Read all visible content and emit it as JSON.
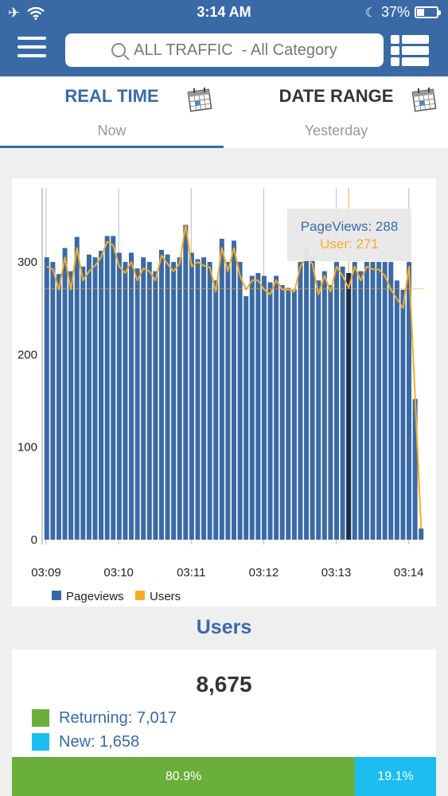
{
  "status_bar": {
    "time": "3:14 AM",
    "battery": "37%",
    "battery_level": 0.37
  },
  "header": {
    "search_text": "ALL TRAFFIC  - All Category",
    "menu_icon": "hamburger-menu-icon",
    "list_icon": "list-view-icon"
  },
  "tabs": [
    {
      "title": "REAL TIME",
      "sub": "Now",
      "active": true,
      "color": "#3a6aa5"
    },
    {
      "title": "DATE RANGE",
      "sub": "Yesterday",
      "active": false,
      "color": "#333333"
    }
  ],
  "chart_data": {
    "type": "bar",
    "x_tick_labels": [
      "03:09",
      "03:10",
      "03:11",
      "03:12",
      "03:13",
      "03:14"
    ],
    "y_tick_labels": [
      "0",
      "100",
      "200",
      "300"
    ],
    "ylim": [
      0,
      380
    ],
    "series": [
      {
        "name": "Pageviews",
        "kind": "bar",
        "color": "#3a6aa5",
        "values": [
          305,
          300,
          287,
          315,
          290,
          327,
          295,
          308,
          305,
          312,
          328,
          328,
          310,
          300,
          310,
          293,
          305,
          300,
          290,
          313,
          308,
          300,
          305,
          340,
          310,
          303,
          305,
          300,
          280,
          325,
          300,
          323,
          300,
          263,
          285,
          288,
          285,
          278,
          285,
          275,
          272,
          270,
          300,
          315,
          305,
          280,
          290,
          275,
          300,
          295,
          288,
          300,
          290,
          300,
          300,
          300,
          300,
          300,
          280,
          270,
          300,
          152,
          12
        ]
      },
      {
        "name": "Users",
        "kind": "line",
        "color": "#f4ad29",
        "values": [
          295,
          292,
          270,
          305,
          270,
          315,
          280,
          290,
          296,
          305,
          322,
          318,
          295,
          288,
          300,
          280,
          293,
          290,
          280,
          307,
          298,
          290,
          298,
          340,
          295,
          300,
          296,
          294,
          268,
          315,
          290,
          315,
          285,
          270,
          280,
          280,
          270,
          265,
          280,
          270,
          270,
          268,
          295,
          305,
          298,
          265,
          285,
          268,
          295,
          285,
          272,
          295,
          280,
          295,
          292,
          292,
          285,
          270,
          260,
          250,
          295,
          155,
          12
        ]
      }
    ],
    "tooltip": {
      "pageviews": "PageViews: 288",
      "users": "User: 271"
    },
    "tooltip_reference_value": 271
  },
  "users": {
    "heading": "Users",
    "total": "8,675",
    "returning": {
      "label": "Returning: 7,017",
      "color": "#6aae3b"
    },
    "new": {
      "label": "New: 1,658",
      "color": "#1cbdef"
    },
    "returning_pct": "80.9%",
    "new_pct": "19.1%",
    "returning_fraction": 0.809
  }
}
